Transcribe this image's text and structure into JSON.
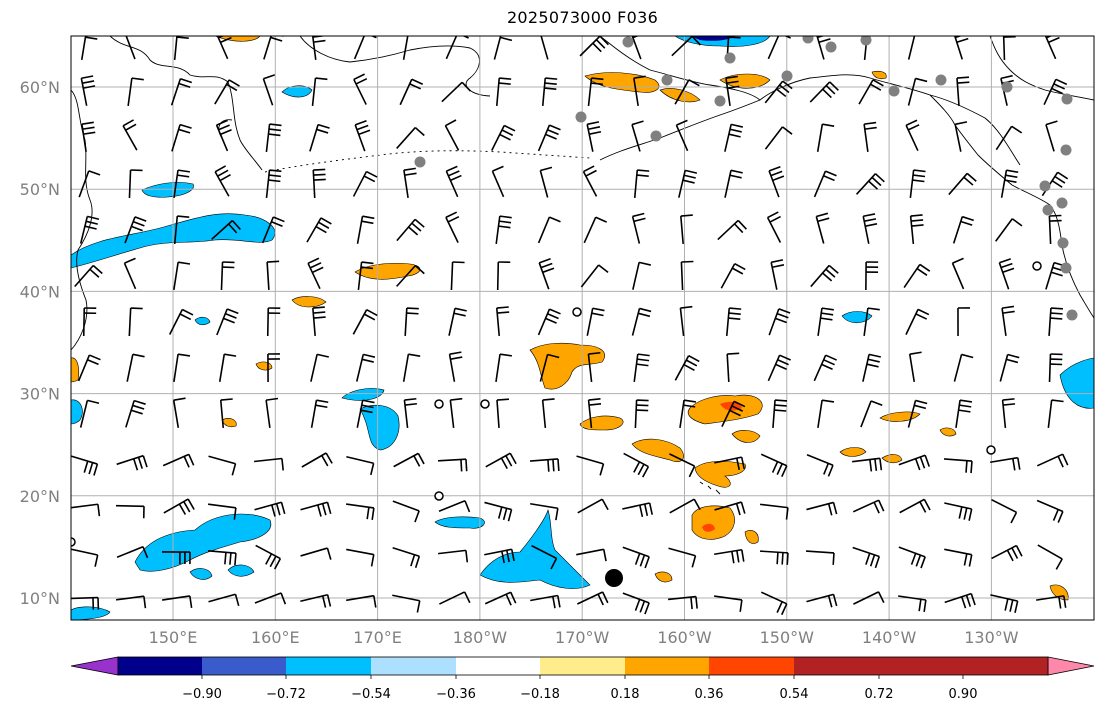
{
  "title": "2025073000 F036",
  "map": {
    "lat_labels": [
      {
        "lat": 60,
        "text": "60°N"
      },
      {
        "lat": 50,
        "text": "50°N"
      },
      {
        "lat": 40,
        "text": "40°N"
      },
      {
        "lat": 30,
        "text": "30°N"
      },
      {
        "lat": 20,
        "text": "20°N"
      },
      {
        "lat": 10,
        "text": "10°N"
      }
    ],
    "lon_labels": [
      {
        "lon": 150,
        "text": "150°E"
      },
      {
        "lon": 160,
        "text": "160°E"
      },
      {
        "lon": 170,
        "text": "170°E"
      },
      {
        "lon": 180,
        "text": "180°W"
      },
      {
        "lon": 190,
        "text": "170°W"
      },
      {
        "lon": 200,
        "text": "160°W"
      },
      {
        "lon": 210,
        "text": "150°W"
      },
      {
        "lon": 220,
        "text": "140°W"
      },
      {
        "lon": 230,
        "text": "130°W"
      }
    ],
    "extent": {
      "lon_min": 140,
      "lon_max": 242,
      "lat_min": 8,
      "lat_max": 65
    },
    "gridlines": true
  },
  "colorbar": {
    "orientation": "horizontal",
    "extend": "both",
    "colors": [
      "#9932CC",
      "#00008B",
      "#3A5BCC",
      "#00BFFF",
      "#ADDFFF",
      "#FFFFFF",
      "#FFEC8B",
      "#FFA500",
      "#FF4500",
      "#B22222",
      "#FF88AA"
    ],
    "tick_labels": [
      "−0.90",
      "−0.72",
      "−0.54",
      "−0.36",
      "−0.18",
      "0.18",
      "0.36",
      "0.54",
      "0.72",
      "0.90"
    ]
  },
  "colors": {
    "positive": "#FFA500",
    "strong_positive": "#FF4500",
    "negative": "#00BFFF",
    "station": "#808080",
    "land_outline": "#000000",
    "grid": "#b0b0b0"
  }
}
